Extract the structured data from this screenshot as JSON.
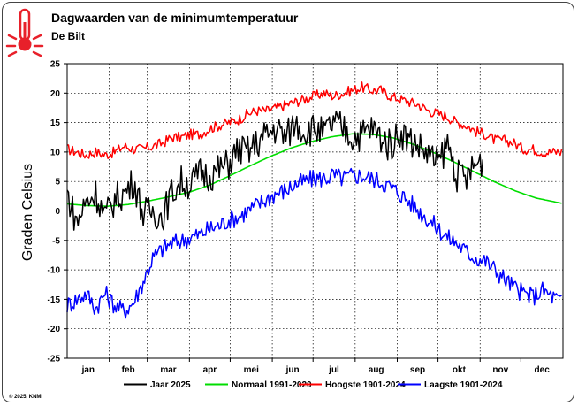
{
  "chart_data": {
    "type": "line",
    "title": "Dagwaarden van de minimumtemperatuur",
    "subtitle": "De Bilt",
    "ylabel": "Graden Celsius",
    "xlabel": "",
    "ylim": [
      -25,
      25
    ],
    "yticks": [
      25,
      20,
      15,
      10,
      5,
      0,
      -5,
      -10,
      -15,
      -20,
      -25
    ],
    "days_in_year": 365,
    "months": [
      {
        "label": "jan",
        "start_day": 0
      },
      {
        "label": "feb",
        "start_day": 31
      },
      {
        "label": "mar",
        "start_day": 59
      },
      {
        "label": "apr",
        "start_day": 90
      },
      {
        "label": "mei",
        "start_day": 120
      },
      {
        "label": "jun",
        "start_day": 151
      },
      {
        "label": "jul",
        "start_day": 181
      },
      {
        "label": "aug",
        "start_day": 212
      },
      {
        "label": "sep",
        "start_day": 243
      },
      {
        "label": "okt",
        "start_day": 273
      },
      {
        "label": "nov",
        "start_day": 304
      },
      {
        "label": "dec",
        "start_day": 334
      }
    ],
    "series": [
      {
        "name": "Hoogste 1901-2024",
        "color": "#ff0000",
        "day": [
          0,
          7,
          14,
          21,
          28,
          35,
          42,
          49,
          56,
          63,
          70,
          77,
          84,
          91,
          98,
          105,
          112,
          119,
          126,
          133,
          140,
          147,
          154,
          161,
          168,
          175,
          182,
          189,
          196,
          203,
          210,
          217,
          224,
          231,
          238,
          245,
          252,
          259,
          266,
          273,
          280,
          287,
          294,
          301,
          308,
          315,
          322,
          329,
          336,
          343,
          350,
          357,
          364
        ],
        "values": [
          10.5,
          10,
          9.5,
          10,
          9.5,
          10,
          11,
          10.5,
          10.5,
          11,
          11.5,
          12.5,
          12.5,
          13,
          13,
          14,
          14.5,
          15,
          15.5,
          16.5,
          17,
          17,
          17.5,
          18,
          18.5,
          19,
          19.5,
          20,
          19.5,
          20,
          20.5,
          21,
          20.5,
          20.5,
          19.5,
          19,
          18.5,
          18,
          17,
          16.5,
          16,
          15,
          14.5,
          13.5,
          13,
          12,
          12,
          11.5,
          10.5,
          10.5,
          10,
          10,
          10
        ]
      },
      {
        "name": "Laagste 1901-2024",
        "color": "#0000ff",
        "day": [
          0,
          7,
          14,
          21,
          28,
          35,
          42,
          49,
          56,
          63,
          70,
          77,
          84,
          91,
          98,
          105,
          112,
          119,
          126,
          133,
          140,
          147,
          154,
          161,
          168,
          175,
          182,
          189,
          196,
          203,
          210,
          217,
          224,
          231,
          238,
          245,
          252,
          259,
          266,
          273,
          280,
          287,
          294,
          301,
          308,
          315,
          322,
          329,
          336,
          343,
          350,
          357,
          364
        ],
        "values": [
          -16,
          -15,
          -14,
          -16.5,
          -14,
          -16,
          -17,
          -15.5,
          -12,
          -8,
          -6.5,
          -5.5,
          -5,
          -4.5,
          -4,
          -3,
          -2.5,
          -1.5,
          -1,
          0,
          1,
          2,
          3,
          3.5,
          4.5,
          5,
          5.5,
          5.5,
          6,
          5.5,
          6,
          6,
          5.5,
          5,
          4,
          3,
          1.5,
          0,
          -1.5,
          -3,
          -4.5,
          -5.5,
          -7,
          -8,
          -8.5,
          -10,
          -11.5,
          -13,
          -14,
          -14.5,
          -13.5,
          -14.5,
          -15.5
        ]
      },
      {
        "name": "Normaal 1991-2020",
        "color": "#00dd00",
        "day": [
          0,
          15,
          30,
          45,
          60,
          75,
          90,
          105,
          120,
          135,
          150,
          165,
          180,
          195,
          210,
          225,
          240,
          255,
          270,
          285,
          300,
          315,
          330,
          345,
          364
        ],
        "values": [
          1.2,
          0.9,
          0.8,
          1.1,
          1.7,
          2.4,
          3.2,
          4.4,
          6.0,
          7.7,
          9.3,
          10.7,
          11.8,
          12.6,
          13.1,
          13.0,
          12.4,
          11.3,
          9.9,
          8.3,
          6.6,
          4.9,
          3.4,
          2.2,
          1.3
        ]
      },
      {
        "name": "Jaar 2025",
        "color": "#000000",
        "day": [
          0,
          7,
          14,
          21,
          28,
          35,
          42,
          49,
          56,
          63,
          70,
          77,
          84,
          91,
          98,
          105,
          112,
          119,
          126,
          133,
          140,
          147,
          154,
          161,
          168,
          175,
          182,
          189,
          196,
          203,
          210,
          217,
          224,
          231,
          238,
          245,
          252,
          259,
          266,
          273,
          280,
          287,
          294,
          301,
          306
        ],
        "values": [
          3,
          -2,
          1.5,
          3,
          -1,
          2,
          3,
          5,
          -0.5,
          0,
          -1,
          3,
          5,
          4.5,
          6.5,
          6,
          7,
          8,
          10.5,
          10,
          11.5,
          13,
          14,
          12.5,
          15,
          13.5,
          14,
          13,
          15,
          14,
          12.5,
          13,
          14,
          12.5,
          11,
          13.5,
          12,
          11,
          9.5,
          8,
          11.5,
          6,
          5.5,
          8,
          8.5
        ]
      }
    ],
    "legend_order": [
      "Jaar 2025",
      "Normaal 1991-2020",
      "Hoogste 1901-2024",
      "Laagste 1901-2024"
    ],
    "credit": "© 2025, KNMI"
  }
}
